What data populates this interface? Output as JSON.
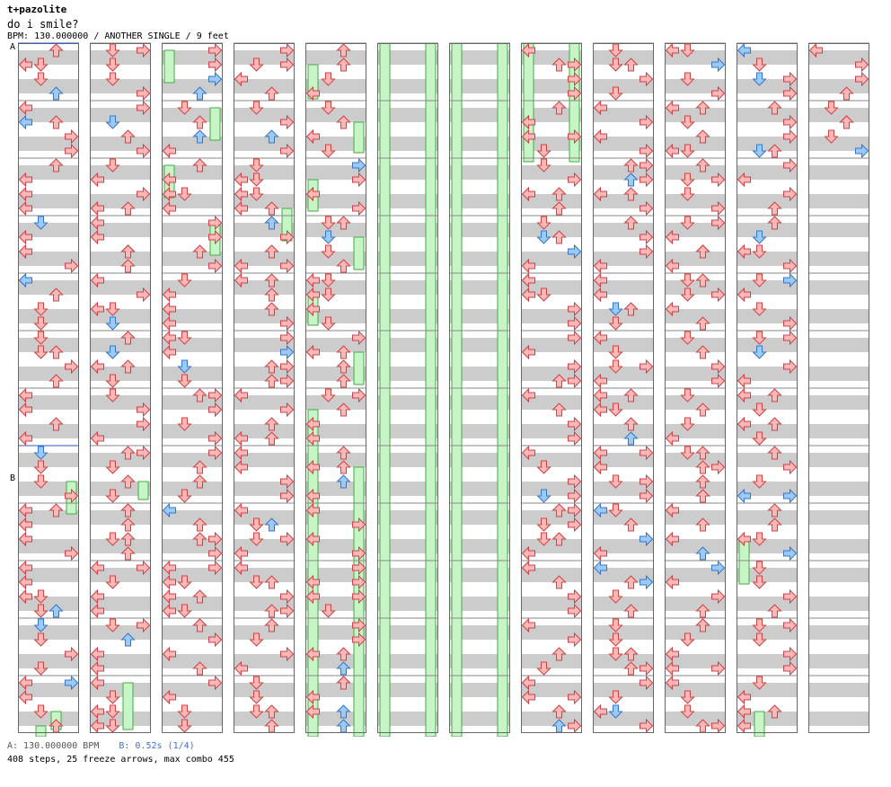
{
  "header": {
    "artist": "t+pazolite",
    "title": "do i smile?",
    "info": "BPM: 130.000000 / ANOTHER SINGLE / 9 feet"
  },
  "markers": {
    "a": "A",
    "b": "B"
  },
  "footer": {
    "bpm_line": "A: 130.000000 BPM",
    "speed_line": "B: 0.52s (1/4)",
    "stats": "408 steps, 25 freeze arrows, max combo 455"
  },
  "colors": {
    "stripe": "#cccccc",
    "normal_arrow": "#ffb7b7",
    "normal_arrow_stroke": "#cc4444",
    "quarter_arrow": "#9ccaf5",
    "quarter_arrow_stroke": "#3377cc",
    "freeze": "#c8f5c8",
    "freeze_stroke": "#44aa44",
    "marker_line": "#3355cc"
  },
  "chart_data": {
    "type": "step-chart",
    "lanes": [
      "left",
      "down",
      "up",
      "right"
    ],
    "columns": 12,
    "measures_per_column": 12,
    "total_measures": 144,
    "bpm": 130,
    "steps": 408,
    "freeze_arrows": 25,
    "max_combo": 455,
    "sections": [
      {
        "label": "A",
        "column": 1,
        "measure": 1
      },
      {
        "label": "B",
        "column": 1,
        "measure": 8
      }
    ],
    "visible_arrows": [
      {
        "col": 1,
        "m": 5,
        "q": 0,
        "lane": 0,
        "c": "r"
      },
      {
        "col": 1,
        "m": 5,
        "q": 0,
        "lane": 3,
        "c": "r"
      },
      {
        "col": 1,
        "m": 5,
        "q": 1,
        "lane": 2,
        "c": "r"
      },
      {
        "col": 1,
        "m": 5,
        "q": 2,
        "lane": 2,
        "c": "r"
      },
      {
        "col": 1,
        "m": 5,
        "q": 3,
        "lane": 2,
        "c": "r"
      },
      {
        "col": 1,
        "m": 6,
        "q": 0,
        "lane": 0,
        "c": "r"
      },
      {
        "col": 1,
        "m": 6,
        "q": 0,
        "lane": 2,
        "c": "r"
      },
      {
        "col": 1,
        "m": 6,
        "q": 0,
        "lane": 3,
        "c": "r"
      },
      {
        "col": 1,
        "m": 6,
        "q": 1,
        "lane": 1,
        "c": "r"
      },
      {
        "col": 1,
        "m": 6,
        "q": 2,
        "lane": 1,
        "c": "r"
      },
      {
        "col": 1,
        "m": 6,
        "q": 3,
        "lane": 1,
        "c": "r"
      },
      {
        "col": 1,
        "m": 7,
        "q": 0,
        "lane": 0,
        "c": "r"
      },
      {
        "col": 1,
        "m": 7,
        "q": 0,
        "lane": 3,
        "c": "r"
      },
      {
        "col": 1,
        "m": 7,
        "q": 1,
        "lane": 2,
        "c": "r"
      },
      {
        "col": 1,
        "m": 7,
        "q": 2,
        "lane": 0,
        "c": "r"
      },
      {
        "col": 1,
        "m": 7,
        "q": 2,
        "lane": 3,
        "c": "r"
      },
      {
        "col": 1,
        "m": 7,
        "q": 3,
        "lane": 2,
        "c": "r"
      },
      {
        "col": 1,
        "m": 8,
        "q": 0,
        "lane": 0,
        "c": "r"
      },
      {
        "col": 1,
        "m": 8,
        "q": 0,
        "lane": 3,
        "c": "r"
      },
      {
        "col": 1,
        "m": 8,
        "q": 1,
        "lane": 1,
        "c": "r"
      },
      {
        "col": 1,
        "m": 8,
        "q": 1,
        "lane": 2,
        "c": "r"
      },
      {
        "col": 1,
        "m": 10,
        "q": 0,
        "lane": 1,
        "c": "r"
      },
      {
        "col": 1,
        "m": 10,
        "q": 1,
        "lane": 3,
        "c": "r"
      },
      {
        "col": 1,
        "m": 10,
        "q": 2,
        "lane": 0,
        "c": "b"
      },
      {
        "col": 1,
        "m": 10,
        "q": 2,
        "lane": 3,
        "c": "r"
      },
      {
        "col": 1,
        "m": 10,
        "q": 3,
        "lane": 0,
        "c": "b"
      },
      {
        "col": 1,
        "m": 11,
        "q": 0,
        "lane": 0,
        "c": "r"
      },
      {
        "col": 1,
        "m": 11,
        "q": 1,
        "lane": 0,
        "c": "r"
      },
      {
        "col": 1,
        "m": 11,
        "q": 2,
        "lane": 3,
        "c": "b"
      },
      {
        "col": 2,
        "m": 8,
        "q": 1,
        "lane": 1,
        "c": "b"
      },
      {
        "col": 2,
        "m": 8,
        "q": 0,
        "lane": 2,
        "c": "r"
      }
    ]
  }
}
